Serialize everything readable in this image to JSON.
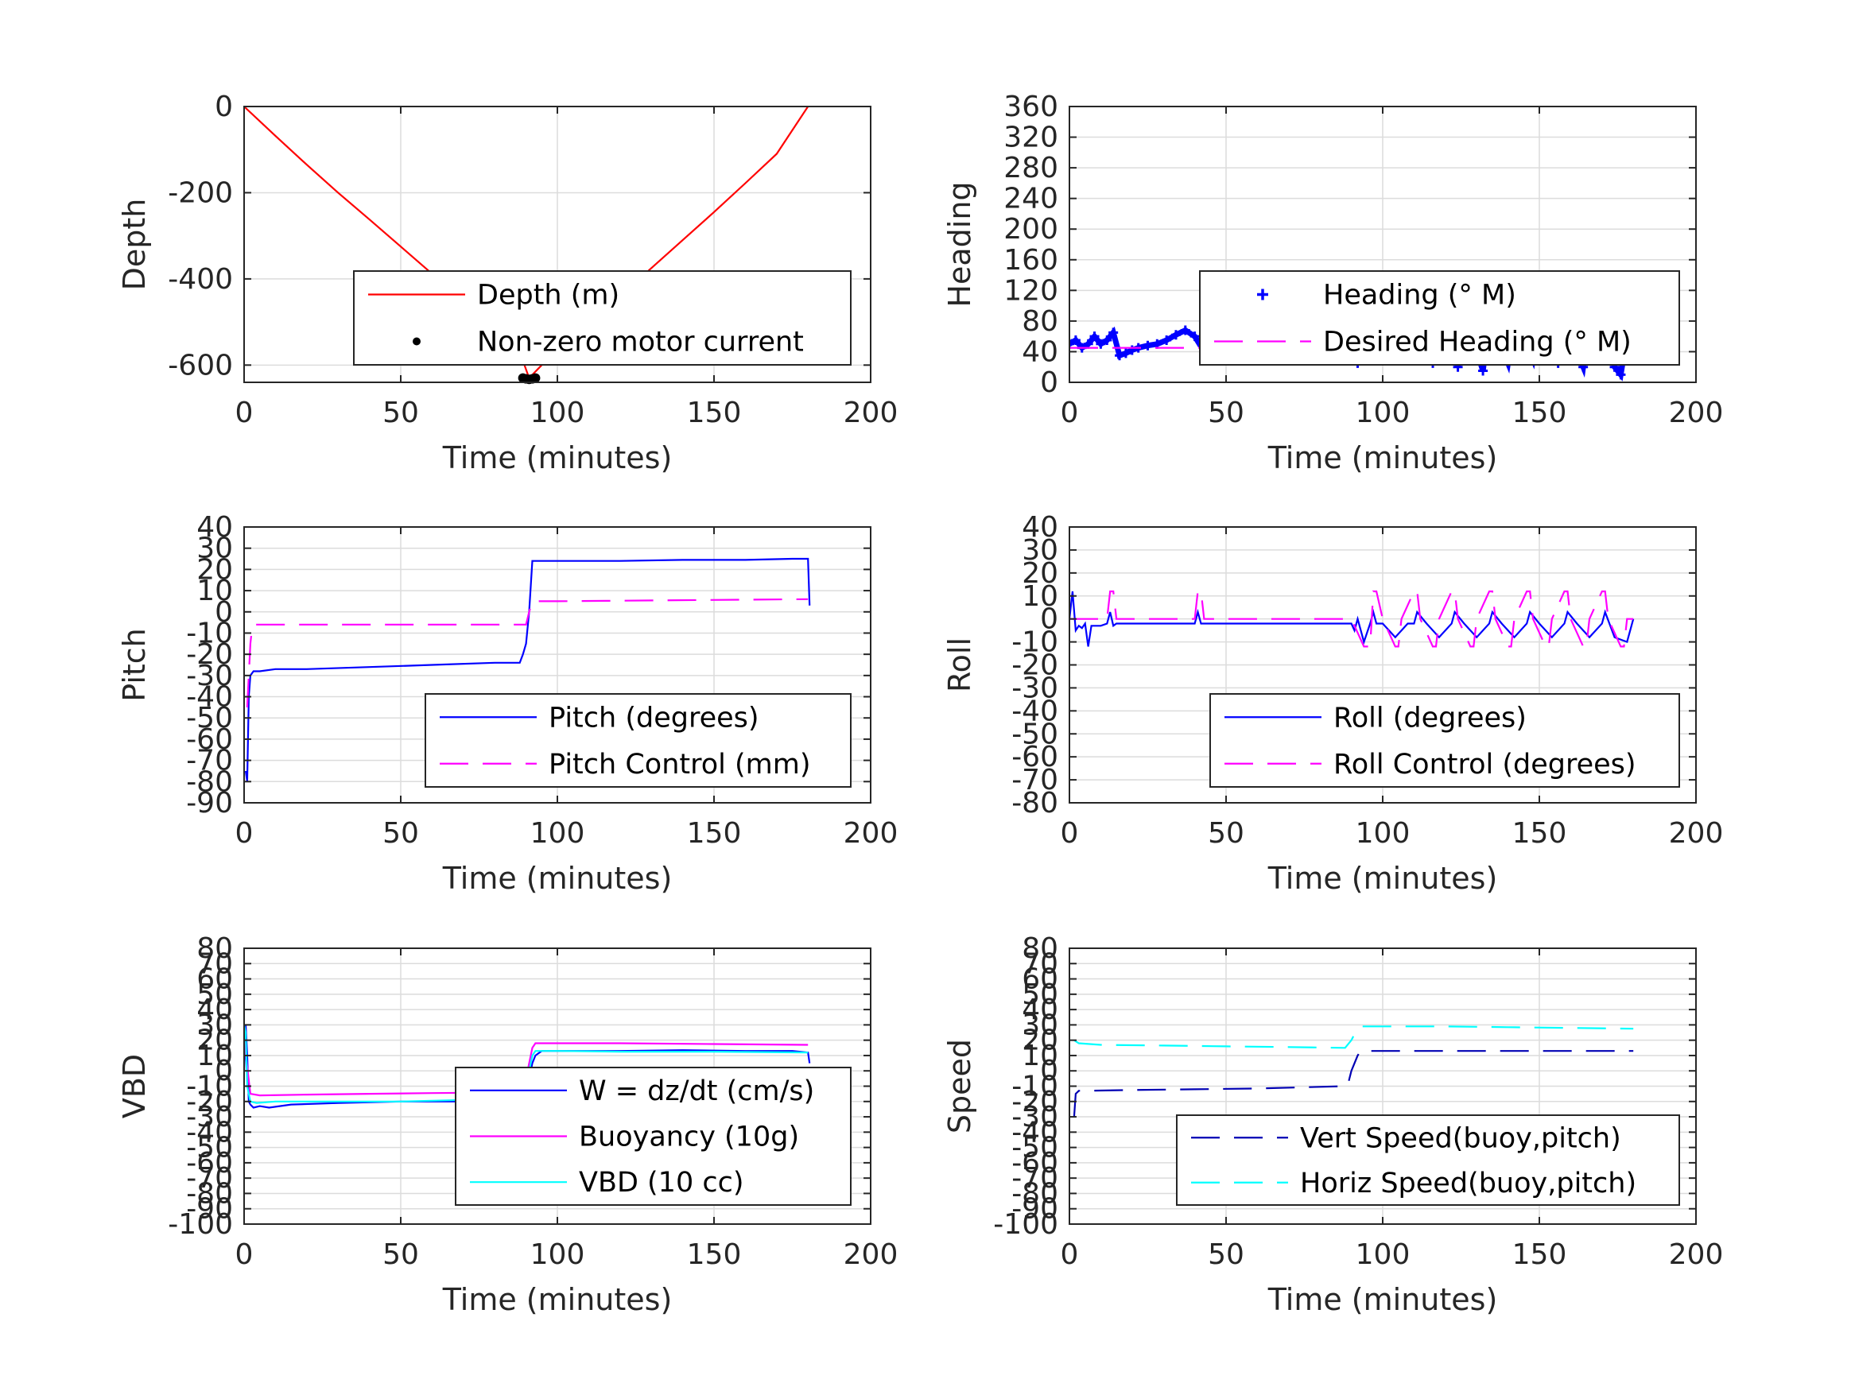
{
  "chart_data": [
    {
      "type": "line",
      "ylabel": "Depth",
      "xlabel": "Time (minutes)",
      "xlim": [
        0,
        200
      ],
      "ylim": [
        -640,
        0
      ],
      "xticks": [
        0,
        50,
        100,
        150,
        200
      ],
      "yticks": [
        -600,
        -400,
        -200,
        0
      ],
      "grid": true,
      "legend_position": "bottom-right",
      "series": [
        {
          "name": "Depth (m)",
          "style": "solid",
          "color": "#ff0000",
          "x": [
            0,
            10,
            20,
            30,
            40,
            50,
            60,
            70,
            80,
            88,
            91,
            95,
            100,
            110,
            120,
            130,
            140,
            150,
            160,
            170,
            180
          ],
          "y": [
            0,
            -68,
            -135,
            -200,
            -262,
            -325,
            -388,
            -450,
            -515,
            -570,
            -630,
            -600,
            -568,
            -505,
            -440,
            -375,
            -310,
            -245,
            -178,
            -110,
            0
          ]
        },
        {
          "name": "Non-zero motor current",
          "style": "dots",
          "color": "#000000",
          "x": [
            89,
            90,
            91,
            92,
            93
          ],
          "y": [
            -630,
            -632,
            -633,
            -632,
            -630
          ]
        }
      ]
    },
    {
      "type": "line",
      "ylabel": "Heading",
      "xlabel": "Time (minutes)",
      "xlim": [
        0,
        200
      ],
      "ylim": [
        0,
        360
      ],
      "xticks": [
        0,
        50,
        100,
        150,
        200
      ],
      "yticks": [
        0,
        40,
        80,
        120,
        160,
        200,
        240,
        280,
        320,
        360
      ],
      "grid": true,
      "legend_position": "top-right",
      "series": [
        {
          "name": "Heading (° M)",
          "style": "markers",
          "color": "#0000ff",
          "x": [
            0,
            2,
            4,
            6,
            8,
            10,
            12,
            14,
            16,
            18,
            20,
            22,
            25,
            28,
            31,
            34,
            37,
            40,
            43,
            46,
            50,
            55,
            60,
            65,
            70,
            75,
            80,
            85,
            90,
            92,
            94,
            96,
            98,
            100,
            102,
            104,
            106,
            108,
            110,
            112,
            114,
            116,
            118,
            120,
            122,
            124,
            126,
            128,
            130,
            132,
            134,
            136,
            138,
            140,
            142,
            144,
            146,
            148,
            150,
            152,
            154,
            156,
            158,
            160,
            162,
            164,
            166,
            168,
            170,
            172,
            174,
            176,
            178,
            180
          ],
          "y": [
            50,
            55,
            45,
            50,
            60,
            50,
            55,
            65,
            35,
            38,
            42,
            45,
            48,
            50,
            55,
            62,
            68,
            60,
            40,
            38,
            42,
            48,
            55,
            58,
            60,
            62,
            65,
            68,
            70,
            25,
            72,
            85,
            60,
            30,
            75,
            88,
            55,
            30,
            80,
            88,
            50,
            25,
            80,
            85,
            45,
            20,
            75,
            90,
            40,
            15,
            80,
            85,
            45,
            25,
            80,
            78,
            50,
            30,
            78,
            85,
            45,
            25,
            95,
            80,
            40,
            20,
            80,
            75,
            40,
            70,
            20,
            10,
            60,
            55
          ]
        },
        {
          "name": "Desired Heading (° M)",
          "style": "dashed",
          "color": "#ff00ff",
          "x": [
            0,
            180
          ],
          "y": [
            45,
            45
          ]
        }
      ]
    },
    {
      "type": "line",
      "ylabel": "Pitch",
      "xlabel": "Time (minutes)",
      "xlim": [
        0,
        200
      ],
      "ylim": [
        -90,
        40
      ],
      "xticks": [
        0,
        50,
        100,
        150,
        200
      ],
      "yticks": [
        -90,
        -80,
        -70,
        -60,
        -50,
        -40,
        -30,
        -20,
        -10,
        0,
        10,
        20,
        30,
        40
      ],
      "grid": true,
      "legend_position": "bottom-right",
      "series": [
        {
          "name": "Pitch (degrees)",
          "style": "solid",
          "color": "#0000ff",
          "x": [
            0.5,
            1,
            1.5,
            2,
            3,
            5,
            10,
            20,
            40,
            60,
            80,
            88,
            89,
            90,
            91,
            92,
            100,
            120,
            140,
            160,
            175,
            180,
            180.5
          ],
          "y": [
            -75,
            -80,
            -40,
            -30,
            -28,
            -28,
            -27,
            -27,
            -26,
            -25,
            -24,
            -24,
            -20,
            -15,
            0,
            24,
            24,
            24,
            24.5,
            24.5,
            25,
            25,
            3
          ]
        },
        {
          "name": "Pitch Control (mm)",
          "style": "dashed",
          "color": "#ff00ff",
          "x": [
            1,
            1.5,
            2,
            2.5,
            3,
            90,
            91,
            92,
            100,
            180
          ],
          "y": [
            -45,
            -30,
            -15,
            -8,
            -6,
            -6,
            0,
            5,
            5,
            6
          ]
        }
      ]
    },
    {
      "type": "line",
      "ylabel": "Roll",
      "xlabel": "Time (minutes)",
      "xlim": [
        0,
        200
      ],
      "ylim": [
        -80,
        40
      ],
      "xticks": [
        0,
        50,
        100,
        150,
        200
      ],
      "yticks": [
        -80,
        -70,
        -60,
        -50,
        -40,
        -30,
        -20,
        -10,
        0,
        10,
        20,
        30,
        40
      ],
      "grid": true,
      "legend_position": "bottom-right",
      "series": [
        {
          "name": "Roll (degrees)",
          "style": "solid",
          "color": "#0000ff",
          "x": [
            0,
            1,
            2,
            3,
            4,
            5,
            6,
            7,
            8,
            10,
            12,
            13,
            14,
            15,
            20,
            30,
            40,
            41,
            42,
            43,
            50,
            60,
            70,
            80,
            90,
            91,
            92,
            94,
            96,
            97,
            98,
            100,
            104,
            108,
            110,
            111,
            114,
            118,
            122,
            123,
            126,
            130,
            134,
            135,
            138,
            142,
            146,
            147,
            150,
            154,
            158,
            159,
            162,
            166,
            170,
            171,
            174,
            178,
            180
          ],
          "y": [
            0,
            12,
            -5,
            -3,
            -4,
            -2,
            -12,
            -3,
            -3,
            -3,
            -2,
            3,
            -3,
            -2,
            -2,
            -2,
            -2,
            3,
            -2,
            -2,
            -2,
            -2,
            -2,
            -2,
            -2,
            -5,
            0,
            -10,
            -2,
            3,
            -2,
            -2,
            -8,
            -2,
            -2,
            3,
            -2,
            -8,
            -2,
            3,
            -2,
            -8,
            -2,
            3,
            -2,
            -8,
            -2,
            3,
            -2,
            -8,
            -2,
            3,
            -2,
            -8,
            -2,
            3,
            -8,
            -10,
            0
          ]
        },
        {
          "name": "Roll Control (degrees)",
          "style": "dashed",
          "color": "#ff00ff",
          "x": [
            0,
            12,
            13,
            14,
            15,
            40,
            41,
            42,
            43,
            90,
            94,
            96,
            97,
            98,
            100,
            104,
            105,
            106,
            110,
            111,
            112,
            116,
            117,
            118,
            122,
            123,
            124,
            128,
            129,
            130,
            134,
            135,
            136,
            140,
            141,
            142,
            146,
            147,
            148,
            152,
            153,
            154,
            158,
            159,
            160,
            164,
            165,
            166,
            170,
            171,
            172,
            176,
            177,
            178,
            180
          ],
          "y": [
            0,
            0,
            12,
            12,
            0,
            0,
            12,
            12,
            0,
            0,
            -12,
            -12,
            12,
            12,
            0,
            -12,
            -12,
            0,
            12,
            12,
            0,
            -12,
            -12,
            0,
            12,
            12,
            0,
            -12,
            -12,
            0,
            12,
            12,
            0,
            -12,
            -12,
            0,
            12,
            12,
            0,
            -12,
            -12,
            0,
            12,
            12,
            0,
            -12,
            -12,
            0,
            12,
            12,
            0,
            -12,
            -12,
            0,
            0
          ]
        }
      ]
    },
    {
      "type": "line",
      "ylabel": "VBD",
      "xlabel": "Time (minutes)",
      "xlim": [
        0,
        200
      ],
      "ylim": [
        -100,
        80
      ],
      "xticks": [
        0,
        50,
        100,
        150,
        200
      ],
      "yticks": [
        -100,
        -90,
        -80,
        -70,
        -60,
        -50,
        -40,
        -30,
        -20,
        -10,
        0,
        10,
        20,
        30,
        40,
        50,
        60,
        70,
        80
      ],
      "grid": true,
      "legend_position": "bottom-right",
      "series": [
        {
          "name": "W = dz/dt (cm/s)",
          "style": "solid",
          "color": "#0000ff",
          "x": [
            0,
            0.5,
            1,
            1.5,
            2,
            3,
            5,
            8,
            15,
            30,
            50,
            70,
            88,
            90,
            92,
            93,
            95,
            100,
            120,
            140,
            160,
            175,
            180,
            180.5
          ],
          "y": [
            0,
            30,
            10,
            -20,
            -22,
            -24,
            -23,
            -24,
            -22,
            -21,
            -20,
            -20,
            -19,
            -15,
            5,
            10,
            13,
            13,
            13,
            13.5,
            13,
            13,
            12,
            5
          ]
        },
        {
          "name": "Buoyancy (10g)",
          "style": "solid",
          "color": "#ff00ff",
          "x": [
            0,
            2,
            5,
            20,
            40,
            60,
            89,
            90,
            92,
            93,
            120,
            150,
            180
          ],
          "y": [
            20,
            -15,
            -16,
            -15.5,
            -15,
            -14.5,
            -14,
            -5,
            15,
            18,
            18,
            17.5,
            17
          ]
        },
        {
          "name": "VBD (10 cc)",
          "style": "solid",
          "color": "#00ffff",
          "x": [
            0,
            0.5,
            1,
            2,
            4,
            10,
            30,
            50,
            70,
            88,
            90,
            92,
            93,
            100,
            120,
            150,
            180
          ],
          "y": [
            30,
            25,
            -10,
            -20,
            -21,
            -20,
            -20,
            -20,
            -19,
            -19,
            -10,
            10,
            13,
            13,
            12.5,
            12.5,
            12
          ]
        }
      ]
    },
    {
      "type": "line",
      "ylabel": "Speed",
      "xlabel": "Time (minutes)",
      "xlim": [
        0,
        200
      ],
      "ylim": [
        -100,
        80
      ],
      "xticks": [
        0,
        50,
        100,
        150,
        200
      ],
      "yticks": [
        -100,
        -90,
        -80,
        -70,
        -60,
        -50,
        -40,
        -30,
        -20,
        -10,
        0,
        10,
        20,
        30,
        40,
        50,
        60,
        70,
        80
      ],
      "grid": true,
      "legend_position": "bottom-right",
      "series": [
        {
          "name": "Vert Speed(buoy,pitch)",
          "style": "dashed",
          "color": "#0000b4",
          "x": [
            1.5,
            2,
            3,
            5,
            20,
            40,
            60,
            88,
            89,
            90,
            92,
            93,
            100,
            120,
            140,
            160,
            180
          ],
          "y": [
            -30,
            -15,
            -13,
            -13,
            -12.5,
            -12,
            -11.5,
            -10,
            -8,
            0,
            10,
            13,
            13,
            13,
            13,
            13,
            13
          ]
        },
        {
          "name": "Horiz Speed(buoy,pitch)",
          "style": "dashed",
          "color": "#00ffff",
          "x": [
            1.5,
            3,
            10,
            30,
            50,
            70,
            88,
            90,
            91,
            92,
            93,
            100,
            120,
            140,
            160,
            180
          ],
          "y": [
            20,
            18,
            17,
            16.5,
            16,
            15.5,
            15,
            20,
            24,
            27,
            29,
            29,
            29,
            28.5,
            28,
            27.5
          ]
        }
      ]
    }
  ]
}
